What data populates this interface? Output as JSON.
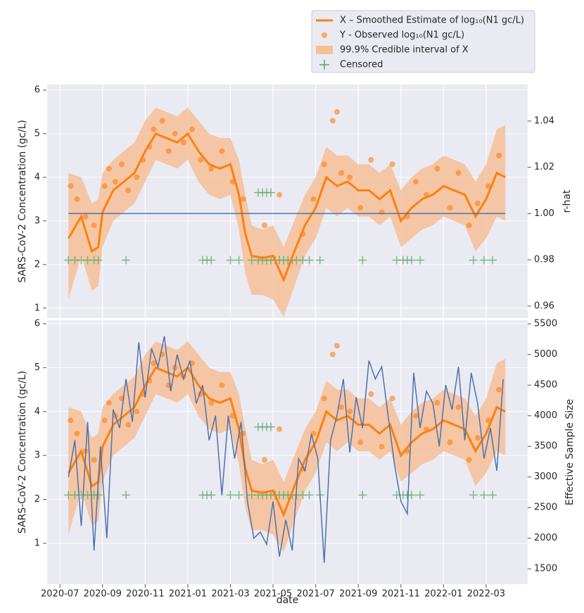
{
  "chart_data": [
    {
      "type": "line",
      "y_label": "SARS-CoV-2 Concentration (gc/L)",
      "y2_label": "r-hat",
      "legend": "upper right",
      "grid": true,
      "xticklabels": false,
      "xlim": [
        -0.6,
        21.95
      ],
      "xticks": [
        0,
        2,
        4,
        6,
        8,
        10,
        12,
        14,
        16,
        18,
        20
      ],
      "ylim": [
        0.77,
        6.13
      ],
      "yticks": [
        1,
        2,
        3,
        4,
        5,
        6
      ],
      "y2lim": [
        0.9548,
        1.0558
      ],
      "y2ticks": [
        0.96,
        0.98,
        {
          "value": 1.0,
          "label": "1.00"
        },
        1.02,
        1.04
      ],
      "series": [
        {
          "kind": "line",
          "name": "X – Smoothed Estimate of log₁₀(N1 gc/L)",
          "color": "#ff7f0e",
          "x": [
            0.4,
            1.0,
            1.5,
            1.8,
            2.0,
            2.5,
            3.0,
            3.5,
            4.0,
            4.5,
            5.0,
            5.5,
            6.0,
            6.5,
            7.0,
            7.5,
            8.0,
            8.4,
            8.7,
            9.0,
            9.5,
            10.0,
            10.5,
            11.0,
            11.5,
            12.0,
            12.5,
            13.0,
            13.5,
            14.0,
            14.5,
            15.0,
            15.5,
            16.0,
            16.5,
            17.0,
            17.5,
            18.0,
            18.5,
            19.0,
            19.5,
            20.0,
            20.5,
            20.9
          ],
          "values": [
            2.6,
            3.1,
            2.3,
            2.4,
            3.2,
            3.7,
            3.9,
            4.1,
            4.6,
            5.0,
            4.9,
            4.8,
            5.0,
            4.6,
            4.3,
            4.2,
            4.3,
            3.6,
            2.7,
            2.2,
            2.15,
            2.2,
            1.65,
            2.3,
            2.9,
            3.3,
            4.0,
            3.8,
            3.9,
            3.7,
            3.7,
            3.5,
            3.7,
            3.0,
            3.3,
            3.5,
            3.6,
            3.8,
            3.7,
            3.6,
            3.1,
            3.5,
            4.1,
            4.0
          ]
        },
        {
          "kind": "scatter",
          "name": "Y - Observed log₁₀(N1 gc/L)",
          "color": "#ff7f0e",
          "x": [
            0.5,
            0.8,
            1.2,
            1.6,
            2.1,
            2.3,
            2.6,
            2.9,
            3.2,
            3.6,
            3.9,
            4.2,
            4.4,
            4.8,
            5.1,
            5.4,
            5.8,
            6.2,
            6.6,
            7.1,
            7.6,
            8.1,
            8.6,
            9.6,
            10.3,
            11.4,
            11.9,
            12.4,
            12.8,
            13.0,
            13.2,
            13.6,
            14.1,
            14.6,
            15.1,
            15.6,
            16.3,
            16.7,
            17.2,
            17.7,
            18.3,
            18.7,
            19.2,
            19.6,
            20.1,
            20.6
          ],
          "values": [
            3.8,
            3.5,
            3.1,
            2.9,
            3.8,
            4.2,
            3.9,
            4.3,
            3.7,
            4.0,
            4.4,
            4.7,
            5.1,
            5.3,
            4.6,
            5.0,
            4.8,
            5.1,
            4.4,
            4.2,
            4.6,
            3.9,
            3.5,
            2.9,
            3.6,
            2.7,
            3.5,
            4.3,
            5.3,
            5.5,
            4.1,
            4.0,
            3.3,
            4.4,
            3.2,
            4.3,
            3.1,
            3.9,
            3.6,
            4.2,
            3.3,
            4.1,
            2.9,
            3.4,
            3.8,
            4.5
          ]
        },
        {
          "kind": "band",
          "name": "99.9% Credible interval of X",
          "color": "#f6bf98",
          "x": [
            0.4,
            1.0,
            1.5,
            1.8,
            2.0,
            2.5,
            3.0,
            3.5,
            4.0,
            4.5,
            5.0,
            5.5,
            6.0,
            6.5,
            7.0,
            7.5,
            8.0,
            8.4,
            8.7,
            9.0,
            9.5,
            10.0,
            10.5,
            11.0,
            11.5,
            12.0,
            12.5,
            13.0,
            13.5,
            14.0,
            14.5,
            15.0,
            15.5,
            16.0,
            16.5,
            17.0,
            17.5,
            18.0,
            18.5,
            19.0,
            19.5,
            20.0,
            20.5,
            20.9
          ],
          "low": [
            1.2,
            2.2,
            1.4,
            1.5,
            2.4,
            3.0,
            3.2,
            3.4,
            3.9,
            4.4,
            4.3,
            4.2,
            4.4,
            3.9,
            3.6,
            3.5,
            3.6,
            2.8,
            1.8,
            1.3,
            1.3,
            1.2,
            0.8,
            1.5,
            2.2,
            2.6,
            3.3,
            3.1,
            3.3,
            3.1,
            3.1,
            2.9,
            3.1,
            2.4,
            2.6,
            2.8,
            2.9,
            3.1,
            3.0,
            2.9,
            2.3,
            2.6,
            3.1,
            3.0
          ],
          "high": [
            4.1,
            4.0,
            3.4,
            3.5,
            4.1,
            4.4,
            4.6,
            4.8,
            5.3,
            5.6,
            5.5,
            5.4,
            5.6,
            5.3,
            5.0,
            4.9,
            4.9,
            4.4,
            3.6,
            2.9,
            2.8,
            2.9,
            2.4,
            3.0,
            3.6,
            4.0,
            4.7,
            4.5,
            4.5,
            4.3,
            4.3,
            4.1,
            4.3,
            3.7,
            4.0,
            4.2,
            4.3,
            4.5,
            4.4,
            4.3,
            3.9,
            4.3,
            5.1,
            5.2
          ]
        },
        {
          "kind": "marker",
          "name": "Censored",
          "color": "#55a868",
          "x": [
            0.4,
            0.7,
            1.0,
            1.3,
            1.6,
            1.8,
            3.1,
            6.7,
            6.9,
            7.1,
            8.0,
            8.4,
            9.0,
            9.3,
            9.5,
            9.7,
            9.9,
            10.1,
            10.3,
            10.5,
            10.7,
            10.9,
            11.1,
            11.4,
            11.7,
            12.2,
            14.2,
            15.8,
            16.1,
            16.3,
            16.5,
            16.9,
            19.4,
            19.9,
            20.3,
            9.3,
            9.5,
            9.7,
            9.9
          ],
          "values": [
            2.1,
            2.1,
            2.1,
            2.1,
            2.1,
            2.1,
            2.1,
            2.1,
            2.1,
            2.1,
            2.1,
            2.1,
            2.1,
            2.1,
            2.1,
            2.1,
            2.1,
            2.1,
            2.1,
            2.1,
            2.1,
            2.1,
            2.1,
            2.1,
            2.1,
            2.1,
            2.1,
            2.1,
            2.1,
            2.1,
            2.1,
            2.1,
            2.1,
            2.1,
            2.1,
            3.65,
            3.65,
            3.65,
            3.65
          ]
        },
        {
          "kind": "line",
          "axis": "y2",
          "color": "#4c72b0",
          "x": [
            0.4,
            20.9
          ],
          "values": [
            1.0,
            1.0
          ]
        }
      ]
    },
    {
      "type": "line",
      "y_label": "SARS-CoV-2 Concentration (gc/L)",
      "y2_label": "Effective Sample Size",
      "x_label": "date",
      "grid": true,
      "xticklabels": true,
      "xlim": [
        -0.6,
        21.95
      ],
      "xticks": [
        {
          "value": 0,
          "label": "2020-07"
        },
        {
          "value": 2,
          "label": "2020-09"
        },
        {
          "value": 4,
          "label": "2020-11"
        },
        {
          "value": 6,
          "label": "2021-01"
        },
        {
          "value": 8,
          "label": "2021-03"
        },
        {
          "value": 10,
          "label": "2021-05"
        },
        {
          "value": 12,
          "label": "2021-07"
        },
        {
          "value": 14,
          "label": "2021-09"
        },
        {
          "value": 16,
          "label": "2021-11"
        },
        {
          "value": 18,
          "label": "2022-01"
        },
        {
          "value": 20,
          "label": "2022-03"
        }
      ],
      "ylim": [
        0.07,
        6.08
      ],
      "yticks": [
        1,
        2,
        3,
        4,
        5,
        6
      ],
      "y2lim": [
        1250,
        5560
      ],
      "y2ticks": [
        1500,
        2000,
        2500,
        3000,
        3500,
        4000,
        4500,
        5000,
        5500
      ],
      "series": [
        {
          "kind": "line",
          "color": "#ff7f0e",
          "x": [
            0.4,
            1.0,
            1.5,
            1.8,
            2.0,
            2.5,
            3.0,
            3.5,
            4.0,
            4.5,
            5.0,
            5.5,
            6.0,
            6.5,
            7.0,
            7.5,
            8.0,
            8.4,
            8.7,
            9.0,
            9.5,
            10.0,
            10.5,
            11.0,
            11.5,
            12.0,
            12.5,
            13.0,
            13.5,
            14.0,
            14.5,
            15.0,
            15.5,
            16.0,
            16.5,
            17.0,
            17.5,
            18.0,
            18.5,
            19.0,
            19.5,
            20.0,
            20.5,
            20.9
          ],
          "values": [
            2.6,
            3.1,
            2.3,
            2.4,
            3.2,
            3.7,
            3.9,
            4.1,
            4.6,
            5.0,
            4.9,
            4.8,
            5.0,
            4.6,
            4.3,
            4.2,
            4.3,
            3.6,
            2.7,
            2.2,
            2.15,
            2.2,
            1.65,
            2.3,
            2.9,
            3.3,
            4.0,
            3.8,
            3.9,
            3.7,
            3.7,
            3.5,
            3.7,
            3.0,
            3.3,
            3.5,
            3.6,
            3.8,
            3.7,
            3.6,
            3.1,
            3.5,
            4.1,
            4.0
          ]
        },
        {
          "kind": "scatter",
          "color": "#ff7f0e",
          "x": [
            0.5,
            0.8,
            1.2,
            1.6,
            2.1,
            2.3,
            2.6,
            2.9,
            3.2,
            3.6,
            3.9,
            4.2,
            4.4,
            4.8,
            5.1,
            5.4,
            5.8,
            6.2,
            6.6,
            7.1,
            7.6,
            8.1,
            8.6,
            9.6,
            10.3,
            11.4,
            11.9,
            12.4,
            12.8,
            13.0,
            13.2,
            13.6,
            14.1,
            14.6,
            15.1,
            15.6,
            16.3,
            16.7,
            17.2,
            17.7,
            18.3,
            18.7,
            19.2,
            19.6,
            20.1,
            20.6
          ],
          "values": [
            3.8,
            3.5,
            3.1,
            2.9,
            3.8,
            4.2,
            3.9,
            4.3,
            3.7,
            4.0,
            4.4,
            4.7,
            5.1,
            5.3,
            4.6,
            5.0,
            4.8,
            5.1,
            4.4,
            4.2,
            4.6,
            3.9,
            3.5,
            2.9,
            3.6,
            2.7,
            3.5,
            4.3,
            5.3,
            5.5,
            4.1,
            4.0,
            3.3,
            4.4,
            3.2,
            4.3,
            3.1,
            3.9,
            3.6,
            4.2,
            3.3,
            4.1,
            2.9,
            3.4,
            3.8,
            4.5
          ]
        },
        {
          "kind": "band",
          "color": "#f6bf98",
          "x": [
            0.4,
            1.0,
            1.5,
            1.8,
            2.0,
            2.5,
            3.0,
            3.5,
            4.0,
            4.5,
            5.0,
            5.5,
            6.0,
            6.5,
            7.0,
            7.5,
            8.0,
            8.4,
            8.7,
            9.0,
            9.5,
            10.0,
            10.5,
            11.0,
            11.5,
            12.0,
            12.5,
            13.0,
            13.5,
            14.0,
            14.5,
            15.0,
            15.5,
            16.0,
            16.5,
            17.0,
            17.5,
            18.0,
            18.5,
            19.0,
            19.5,
            20.0,
            20.5,
            20.9
          ],
          "low": [
            1.2,
            2.2,
            1.4,
            1.5,
            2.4,
            3.0,
            3.2,
            3.4,
            3.9,
            4.4,
            4.3,
            4.2,
            4.4,
            3.9,
            3.6,
            3.5,
            3.6,
            2.8,
            1.8,
            1.3,
            1.3,
            1.2,
            0.8,
            1.5,
            2.2,
            2.6,
            3.3,
            3.1,
            3.3,
            3.1,
            3.1,
            2.9,
            3.1,
            2.4,
            2.6,
            2.8,
            2.9,
            3.1,
            3.0,
            2.9,
            2.3,
            2.6,
            3.1,
            3.0
          ],
          "high": [
            4.1,
            4.0,
            3.4,
            3.5,
            4.1,
            4.4,
            4.6,
            4.8,
            5.3,
            5.6,
            5.5,
            5.4,
            5.6,
            5.3,
            5.0,
            4.9,
            4.9,
            4.4,
            3.6,
            2.9,
            2.8,
            2.9,
            2.4,
            3.0,
            3.6,
            4.0,
            4.7,
            4.5,
            4.5,
            4.3,
            4.3,
            4.1,
            4.3,
            3.7,
            4.0,
            4.2,
            4.3,
            4.5,
            4.4,
            4.3,
            3.9,
            4.3,
            5.1,
            5.2
          ]
        },
        {
          "kind": "marker",
          "color": "#55a868",
          "x": [
            0.4,
            0.7,
            1.0,
            1.3,
            1.6,
            1.8,
            3.1,
            6.7,
            6.9,
            7.1,
            8.0,
            8.4,
            9.0,
            9.3,
            9.5,
            9.7,
            9.9,
            10.1,
            10.3,
            10.5,
            10.7,
            10.9,
            11.1,
            11.4,
            11.7,
            12.2,
            14.2,
            15.8,
            16.1,
            16.3,
            16.5,
            16.9,
            19.4,
            19.9,
            20.3,
            9.3,
            9.5,
            9.7,
            9.9
          ],
          "values": [
            2.1,
            2.1,
            2.1,
            2.1,
            2.1,
            2.1,
            2.1,
            2.1,
            2.1,
            2.1,
            2.1,
            2.1,
            2.1,
            2.1,
            2.1,
            2.1,
            2.1,
            2.1,
            2.1,
            2.1,
            2.1,
            2.1,
            2.1,
            2.1,
            2.1,
            2.1,
            2.1,
            2.1,
            2.1,
            2.1,
            2.1,
            2.1,
            2.1,
            2.1,
            2.1,
            3.65,
            3.65,
            3.65,
            3.65
          ]
        },
        {
          "kind": "line",
          "axis": "y2",
          "color": "#4c72b0",
          "x": [
            0.4,
            0.7,
            1.0,
            1.3,
            1.6,
            1.9,
            2.2,
            2.5,
            2.8,
            3.1,
            3.4,
            3.7,
            4.0,
            4.3,
            4.6,
            4.9,
            5.2,
            5.5,
            5.8,
            6.1,
            6.4,
            6.7,
            7.0,
            7.3,
            7.6,
            7.9,
            8.2,
            8.5,
            8.8,
            9.1,
            9.4,
            9.7,
            10.0,
            10.3,
            10.6,
            10.9,
            11.2,
            11.5,
            11.8,
            12.1,
            12.4,
            12.7,
            13.0,
            13.3,
            13.6,
            13.9,
            14.2,
            14.5,
            14.8,
            15.1,
            15.4,
            15.7,
            16.0,
            16.3,
            16.6,
            16.9,
            17.2,
            17.5,
            17.8,
            18.1,
            18.4,
            18.7,
            19.0,
            19.3,
            19.6,
            19.9,
            20.2,
            20.5,
            20.8
          ],
          "values": [
            3000,
            3600,
            2200,
            3900,
            1800,
            3500,
            2000,
            4100,
            3800,
            4600,
            3900,
            5200,
            4300,
            5100,
            4800,
            5300,
            4400,
            5000,
            4600,
            4900,
            4200,
            4500,
            3600,
            4000,
            2700,
            4000,
            3300,
            3900,
            2600,
            2000,
            2100,
            1900,
            2600,
            1700,
            2300,
            1800,
            3300,
            3100,
            3700,
            3300,
            1600,
            3600,
            4000,
            4600,
            3400,
            4300,
            3800,
            4900,
            4600,
            4800,
            4000,
            3200,
            2600,
            2400,
            4700,
            3800,
            4400,
            4200,
            3500,
            4500,
            4100,
            4800,
            3600,
            4700,
            4200,
            3300,
            3800,
            3100,
            4600
          ]
        }
      ]
    }
  ]
}
